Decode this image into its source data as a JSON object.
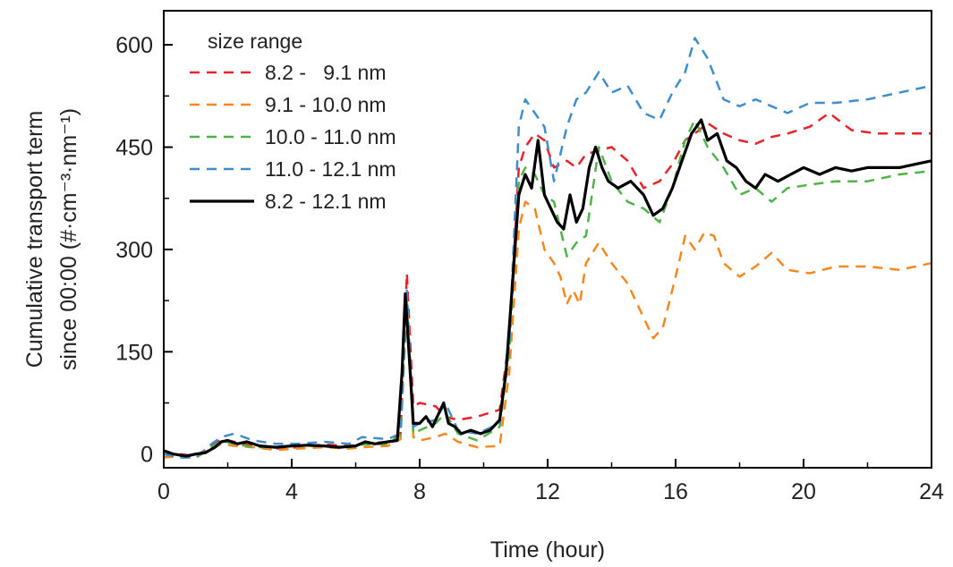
{
  "chart_data": {
    "type": "line",
    "xlabel": "Time (hour)",
    "ylabel_line1": "Cumulative transport term",
    "ylabel_line2": "since 00:00 (#·cm⁻³·nm⁻¹)",
    "xlim": [
      0,
      24
    ],
    "ylim": [
      -20,
      650
    ],
    "xticks": [
      0,
      4,
      8,
      12,
      16,
      20,
      24
    ],
    "yticks": [
      0,
      150,
      300,
      450,
      600
    ],
    "legend_title": "size range",
    "legend_position": "top-left",
    "series": [
      {
        "name": "8.2 -   9.1 nm",
        "color": "#e8242b",
        "dash": true,
        "x": [
          0,
          0.5,
          1,
          1.5,
          1.8,
          2.2,
          2.8,
          3.5,
          4.2,
          5,
          5.8,
          6.2,
          7,
          7.4,
          7.6,
          7.8,
          8,
          8.5,
          8.8,
          9.2,
          9.8,
          10.5,
          10.8,
          11.1,
          11.3,
          11.6,
          11.9,
          12.2,
          12.6,
          12.9,
          13.2,
          13.6,
          14,
          14.5,
          15,
          15.5,
          15.9,
          16.3,
          16.6,
          17,
          17.5,
          18,
          18.5,
          19,
          19.5,
          20.2,
          20.8,
          21.5,
          22.3,
          23,
          24
        ],
        "y": [
          -5,
          0,
          -3,
          12,
          22,
          18,
          12,
          8,
          10,
          14,
          12,
          15,
          18,
          30,
          265,
          70,
          75,
          70,
          55,
          50,
          55,
          65,
          170,
          420,
          450,
          470,
          460,
          420,
          430,
          420,
          440,
          445,
          450,
          430,
          390,
          400,
          425,
          460,
          470,
          485,
          470,
          460,
          455,
          465,
          470,
          480,
          500,
          475,
          470,
          470,
          470
        ]
      },
      {
        "name": "9.1 - 10.0 nm",
        "color": "#f5891f",
        "dash": true,
        "x": [
          0,
          0.5,
          1,
          1.5,
          1.8,
          2.2,
          2.8,
          3.5,
          4.2,
          5,
          5.8,
          6.2,
          7,
          7.4,
          7.6,
          7.8,
          8,
          8.5,
          8.8,
          9.2,
          9.8,
          10.5,
          10.8,
          11.1,
          11.3,
          11.6,
          11.9,
          12.2,
          12.4,
          12.6,
          12.8,
          13,
          13.2,
          13.6,
          14,
          14.5,
          15,
          15.3,
          15.6,
          16,
          16.3,
          16.6,
          16.9,
          17.2,
          17.5,
          18,
          18.5,
          19,
          19.5,
          20.2,
          21,
          22,
          23,
          24
        ],
        "y": [
          -5,
          -3,
          -5,
          8,
          15,
          12,
          10,
          6,
          8,
          10,
          8,
          10,
          12,
          22,
          225,
          25,
          20,
          25,
          30,
          18,
          10,
          12,
          120,
          330,
          370,
          360,
          300,
          280,
          260,
          220,
          240,
          220,
          280,
          310,
          280,
          250,
          200,
          170,
          185,
          260,
          320,
          300,
          325,
          320,
          280,
          260,
          275,
          295,
          270,
          265,
          275,
          275,
          270,
          280
        ]
      },
      {
        "name": "10.0 - 11.0 nm",
        "color": "#4fb448",
        "dash": true,
        "x": [
          0,
          0.5,
          1,
          1.5,
          1.8,
          2.2,
          2.8,
          3.5,
          4.2,
          5,
          5.8,
          6.2,
          7,
          7.4,
          7.6,
          7.8,
          8,
          8.5,
          8.8,
          9.2,
          9.8,
          10.5,
          10.8,
          11.1,
          11.3,
          11.6,
          11.9,
          12.2,
          12.6,
          12.9,
          13.2,
          13.6,
          14,
          14.5,
          15,
          15.5,
          15.9,
          16.3,
          16.6,
          17,
          17.5,
          18,
          18.5,
          19,
          19.5,
          20.2,
          21,
          22,
          23,
          24
        ],
        "y": [
          5,
          -3,
          -5,
          10,
          20,
          15,
          10,
          10,
          12,
          12,
          10,
          14,
          15,
          28,
          230,
          30,
          35,
          45,
          60,
          30,
          20,
          40,
          150,
          400,
          420,
          410,
          380,
          370,
          290,
          310,
          320,
          450,
          400,
          370,
          360,
          340,
          390,
          460,
          490,
          450,
          420,
          380,
          390,
          370,
          390,
          395,
          400,
          400,
          410,
          415
        ]
      },
      {
        "name": "11.0 - 12.1 nm",
        "color": "#3f8ecb",
        "dash": true,
        "x": [
          0,
          0.5,
          1,
          1.5,
          1.8,
          2.2,
          2.8,
          3.5,
          4.2,
          5,
          5.8,
          6.2,
          7,
          7.4,
          7.6,
          7.8,
          8,
          8.5,
          8.8,
          9.2,
          9.8,
          10.5,
          10.8,
          11.1,
          11.3,
          11.6,
          11.9,
          12.2,
          12.6,
          12.9,
          13.2,
          13.6,
          14,
          14.5,
          15,
          15.5,
          15.9,
          16.3,
          16.6,
          17,
          17.5,
          18,
          18.5,
          19,
          19.5,
          20.2,
          21,
          22,
          23,
          24
        ],
        "y": [
          0,
          -5,
          -5,
          15,
          25,
          30,
          20,
          15,
          15,
          18,
          15,
          25,
          22,
          30,
          240,
          40,
          45,
          50,
          75,
          35,
          30,
          45,
          160,
          480,
          520,
          500,
          480,
          400,
          480,
          520,
          530,
          560,
          530,
          540,
          500,
          490,
          530,
          560,
          610,
          580,
          520,
          510,
          520,
          510,
          500,
          515,
          515,
          520,
          530,
          540
        ]
      },
      {
        "name": "8.2 - 12.1 nm",
        "color": "#000000",
        "dash": false,
        "x": [
          0,
          0.3,
          0.7,
          1,
          1.3,
          1.6,
          1.8,
          2,
          2.3,
          2.6,
          3,
          3.5,
          4,
          4.5,
          5,
          5.5,
          6,
          6.3,
          6.6,
          7,
          7.3,
          7.45,
          7.55,
          7.65,
          7.8,
          8,
          8.2,
          8.4,
          8.6,
          8.75,
          8.9,
          9.1,
          9.3,
          9.6,
          9.9,
          10.2,
          10.5,
          10.7,
          10.9,
          11.1,
          11.3,
          11.5,
          11.7,
          11.9,
          12.1,
          12.3,
          12.5,
          12.7,
          12.9,
          13.1,
          13.3,
          13.5,
          13.7,
          13.9,
          14.2,
          14.6,
          15,
          15.3,
          15.6,
          15.9,
          16.2,
          16.5,
          16.8,
          17,
          17.3,
          17.6,
          17.9,
          18.2,
          18.5,
          18.8,
          19.2,
          19.6,
          20,
          20.5,
          21,
          21.5,
          22,
          22.5,
          23,
          23.5,
          24
        ],
        "y": [
          5,
          0,
          -3,
          0,
          2,
          10,
          18,
          20,
          15,
          18,
          12,
          10,
          12,
          13,
          12,
          10,
          12,
          18,
          15,
          18,
          20,
          120,
          235,
          160,
          45,
          45,
          55,
          40,
          60,
          75,
          45,
          40,
          30,
          35,
          30,
          35,
          50,
          120,
          250,
          380,
          410,
          390,
          460,
          380,
          360,
          340,
          330,
          380,
          340,
          360,
          420,
          450,
          420,
          400,
          390,
          400,
          380,
          350,
          360,
          390,
          430,
          470,
          490,
          460,
          470,
          430,
          420,
          400,
          390,
          410,
          400,
          410,
          420,
          410,
          420,
          415,
          420,
          420,
          420,
          425,
          430
        ]
      }
    ]
  }
}
